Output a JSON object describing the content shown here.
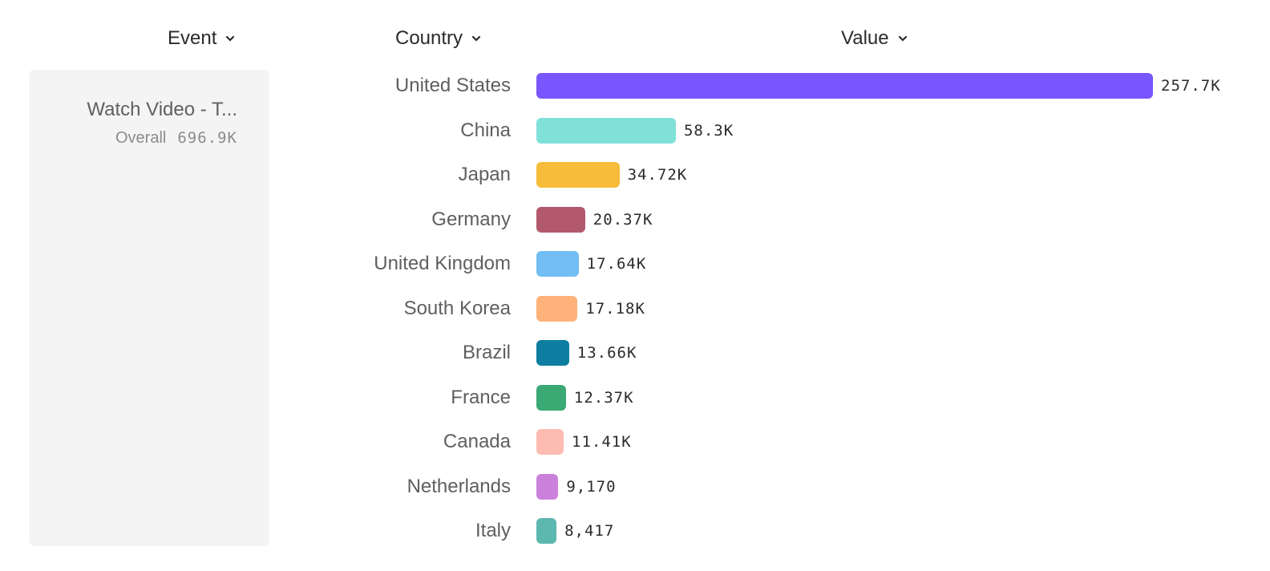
{
  "headers": {
    "event": "Event",
    "country": "Country",
    "value": "Value"
  },
  "event_panel": {
    "name": "Watch Video - T...",
    "overall_label": "Overall",
    "overall_value": "696.9K"
  },
  "chart_data": {
    "type": "bar",
    "orientation": "horizontal",
    "categories": [
      "United States",
      "China",
      "Japan",
      "Germany",
      "United Kingdom",
      "South Korea",
      "Brazil",
      "France",
      "Canada",
      "Netherlands",
      "Italy"
    ],
    "values": [
      257700,
      58300,
      34720,
      20370,
      17640,
      17180,
      13660,
      12370,
      11410,
      9170,
      8417
    ],
    "labels": [
      "257.7K",
      "58.3K",
      "34.72K",
      "20.37K",
      "17.64K",
      "17.18K",
      "13.66K",
      "12.37K",
      "11.41K",
      "9,170",
      "8,417"
    ],
    "colors": [
      "#7856ff",
      "#80e1d9",
      "#f8bc3b",
      "#b2596e",
      "#72bef4",
      "#ffb27a",
      "#0d7ea0",
      "#3ba974",
      "#febbb2",
      "#cb80dc",
      "#5cb7af"
    ],
    "xlim": [
      0,
      257700
    ],
    "grid": false
  }
}
